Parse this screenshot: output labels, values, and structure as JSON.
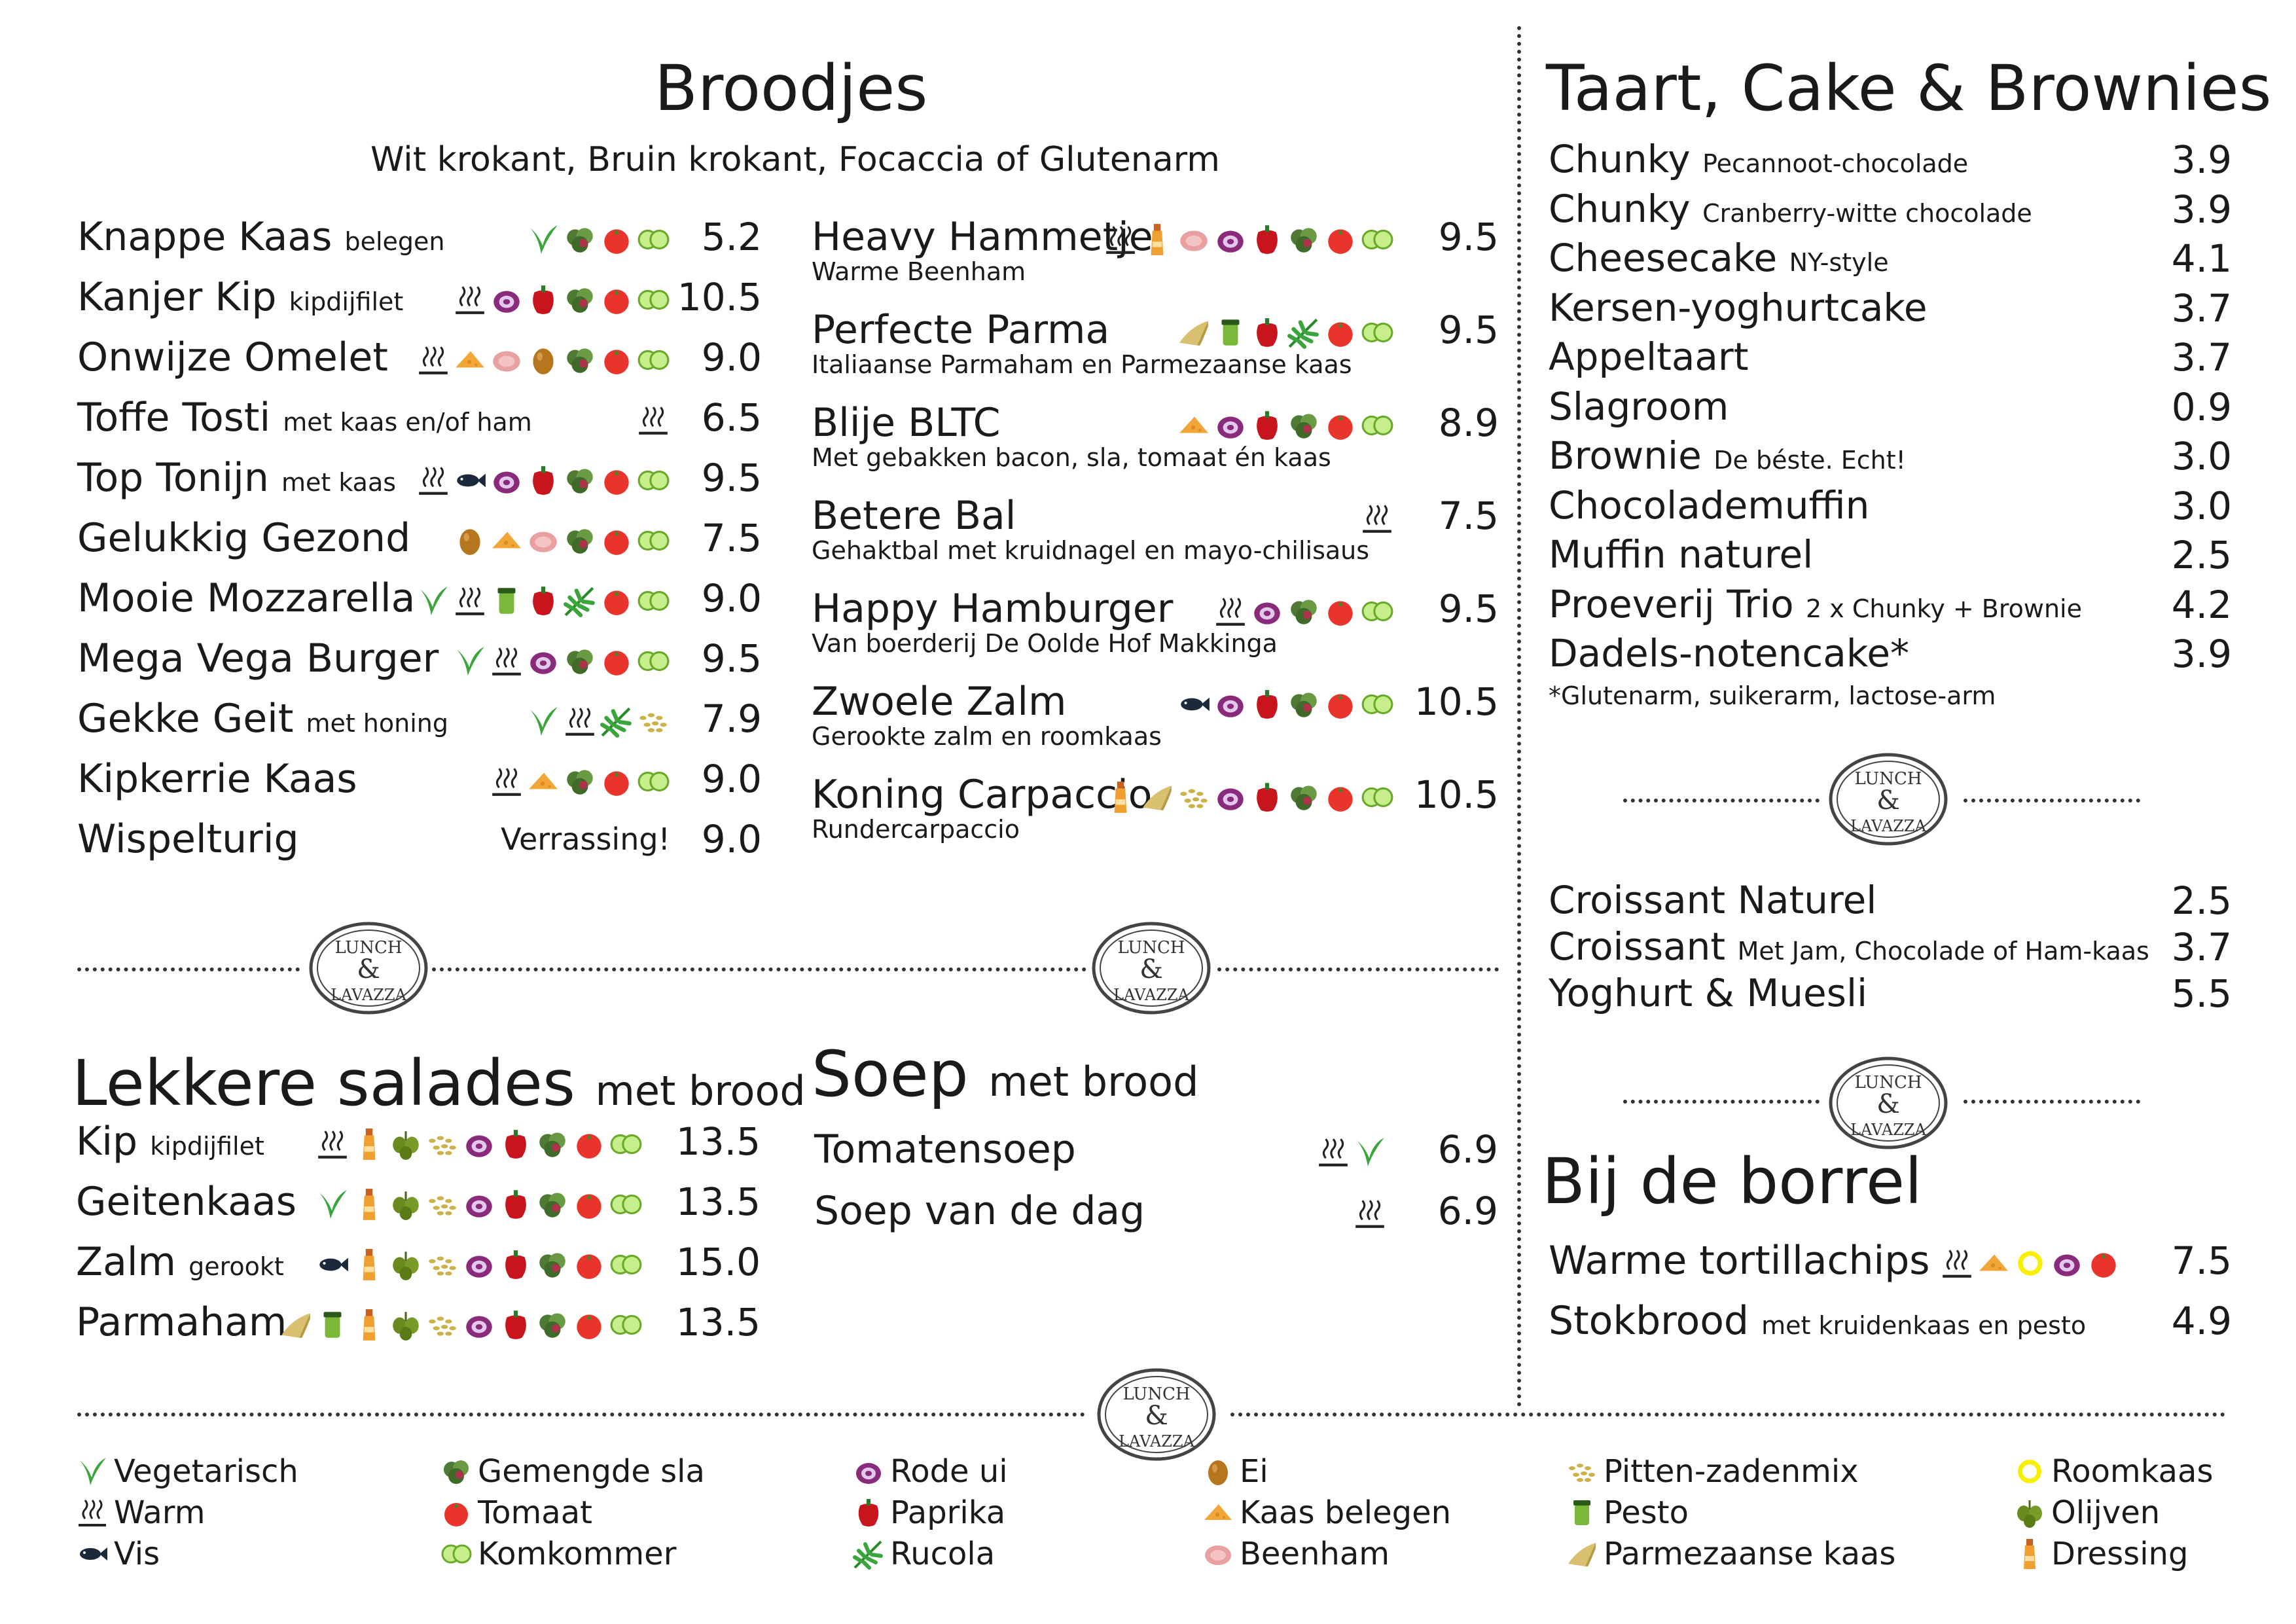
{
  "broodjes": {
    "title": "Broodjes",
    "subtitle": "Wit krokant, Bruin krokant, Focaccia of Glutenarm",
    "left": [
      {
        "name": "Knappe Kaas",
        "note": "belegen",
        "desc": "",
        "price": "5.2",
        "icons": [
          "vegetarian",
          "lettuce",
          "tomato",
          "cucumber"
        ]
      },
      {
        "name": "Kanjer Kip",
        "note": "kipdijfilet",
        "desc": "",
        "price": "10.5",
        "icons": [
          "warm",
          "onion",
          "pepper",
          "lettuce",
          "tomato",
          "cucumber"
        ]
      },
      {
        "name": "Onwijze Omelet",
        "note": "",
        "desc": "",
        "price": "9.0",
        "icons": [
          "warm",
          "cheese",
          "ham",
          "egg",
          "lettuce",
          "tomato",
          "cucumber"
        ]
      },
      {
        "name": "Toffe Tosti",
        "note": "met kaas en/of ham",
        "desc": "",
        "price": "6.5",
        "icons": [
          "warm"
        ]
      },
      {
        "name": "Top Tonijn",
        "note": "met kaas",
        "desc": "",
        "price": "9.5",
        "icons": [
          "warm",
          "fish",
          "onion",
          "pepper",
          "lettuce",
          "tomato",
          "cucumber"
        ]
      },
      {
        "name": "Gelukkig Gezond",
        "note": "",
        "desc": "",
        "price": "7.5",
        "icons": [
          "egg",
          "cheese",
          "ham",
          "lettuce",
          "tomato",
          "cucumber"
        ]
      },
      {
        "name": "Mooie Mozzarella",
        "note": "",
        "desc": "",
        "price": "9.0",
        "icons": [
          "vegetarian",
          "warm",
          "pesto",
          "pepper",
          "rucola",
          "tomato",
          "cucumber"
        ]
      },
      {
        "name": "Mega Vega Burger",
        "note": "",
        "desc": "",
        "price": "9.5",
        "icons": [
          "vegetarian",
          "warm",
          "onion",
          "lettuce",
          "tomato",
          "cucumber"
        ]
      },
      {
        "name": "Gekke Geit",
        "note": "met honing",
        "desc": "",
        "price": "7.9",
        "icons": [
          "vegetarian",
          "warm",
          "rucola",
          "seeds"
        ]
      },
      {
        "name": "Kipkerrie Kaas",
        "note": "",
        "desc": "",
        "price": "9.0",
        "icons": [
          "warm",
          "cheese",
          "lettuce",
          "tomato",
          "cucumber"
        ]
      },
      {
        "name": "Wispelturig",
        "note": "",
        "desc": "Verrassing!",
        "price": "9.0",
        "icons": []
      }
    ],
    "right": [
      {
        "name": "Heavy Hammetje",
        "note": "",
        "desc": "Warme Beenham",
        "price": "9.5",
        "icons": [
          "warm",
          "dressing",
          "ham",
          "onion",
          "pepper",
          "lettuce",
          "tomato",
          "cucumber"
        ]
      },
      {
        "name": "Perfecte Parma",
        "note": "",
        "desc": "Italiaanse Parmaham en Parmezaanse kaas",
        "price": "9.5",
        "icons": [
          "parmesan",
          "pesto",
          "pepper",
          "rucola",
          "tomato",
          "cucumber"
        ]
      },
      {
        "name": "Blije BLTC",
        "note": "",
        "desc": "Met gebakken bacon, sla, tomaat én kaas",
        "price": "8.9",
        "icons": [
          "cheese",
          "onion",
          "pepper",
          "lettuce",
          "tomato",
          "cucumber"
        ]
      },
      {
        "name": "Betere Bal",
        "note": "",
        "desc": "Gehaktbal met kruidnagel en mayo-chilisaus",
        "price": "7.5",
        "icons": [
          "warm"
        ]
      },
      {
        "name": "Happy Hamburger",
        "note": "",
        "desc": "Van boerderij De Oolde Hof Makkinga",
        "price": "9.5",
        "icons": [
          "warm",
          "onion",
          "lettuce",
          "tomato",
          "cucumber"
        ]
      },
      {
        "name": "Zwoele Zalm",
        "note": "",
        "desc": "Gerookte zalm en roomkaas",
        "price": "10.5",
        "icons": [
          "fish",
          "onion",
          "pepper",
          "lettuce",
          "tomato",
          "cucumber"
        ]
      },
      {
        "name": "Koning Carpaccio",
        "note": "",
        "desc": "Rundercarpaccio",
        "price": "10.5",
        "icons": [
          "dressing",
          "parmesan",
          "seeds",
          "onion",
          "pepper",
          "lettuce",
          "tomato",
          "cucumber"
        ]
      }
    ]
  },
  "salades": {
    "title": "Lekkere salades",
    "title_note": "met brood",
    "items": [
      {
        "name": "Kip",
        "note": "kipdijfilet",
        "price": "13.5",
        "icons": [
          "warm",
          "dressing",
          "olives",
          "seeds",
          "onion",
          "pepper",
          "lettuce",
          "tomato",
          "cucumber"
        ]
      },
      {
        "name": "Geitenkaas",
        "note": "",
        "price": "13.5",
        "icons": [
          "vegetarian",
          "dressing",
          "olives",
          "seeds",
          "onion",
          "pepper",
          "lettuce",
          "tomato",
          "cucumber"
        ]
      },
      {
        "name": "Zalm",
        "note": "gerookt",
        "price": "15.0",
        "icons": [
          "fish",
          "dressing",
          "olives",
          "seeds",
          "onion",
          "pepper",
          "lettuce",
          "tomato",
          "cucumber"
        ]
      },
      {
        "name": "Parmaham",
        "note": "",
        "price": "13.5",
        "icons": [
          "parmesan",
          "pesto",
          "dressing",
          "olives",
          "seeds",
          "onion",
          "pepper",
          "lettuce",
          "tomato",
          "cucumber"
        ]
      }
    ]
  },
  "soep": {
    "title": "Soep",
    "title_note": "met brood",
    "items": [
      {
        "name": "Tomatensoep",
        "price": "6.9",
        "icons": [
          "warm",
          "vegetarian"
        ]
      },
      {
        "name": "Soep van de dag",
        "price": "6.9",
        "icons": [
          "warm"
        ]
      }
    ]
  },
  "taart": {
    "title": "Taart, Cake & Brownies",
    "items": [
      {
        "name": "Chunky",
        "note": "Pecannoot-chocolade",
        "price": "3.9"
      },
      {
        "name": "Chunky",
        "note": "Cranberry-witte chocolade",
        "price": "3.9"
      },
      {
        "name": "Cheesecake",
        "note": "NY-style",
        "price": "4.1"
      },
      {
        "name": "Kersen-yoghurtcake",
        "note": "",
        "price": "3.7"
      },
      {
        "name": "Appeltaart",
        "note": "",
        "price": "3.7"
      },
      {
        "name": "Slagroom",
        "note": "",
        "price": "0.9"
      },
      {
        "name": "Brownie",
        "note": "De béste. Echt!",
        "price": "3.0"
      },
      {
        "name": "Chocolademuffin",
        "note": "",
        "price": "3.0"
      },
      {
        "name": "Muffin naturel",
        "note": "",
        "price": "2.5"
      },
      {
        "name": "Proeverij Trio",
        "note": "2 x Chunky + Brownie",
        "price": "4.2"
      },
      {
        "name": "Dadels-notencake*",
        "note": "",
        "price": "3.9"
      }
    ],
    "footnote": "*Glutenarm, suikerarm, lactose-arm"
  },
  "ontbijt": {
    "items": [
      {
        "name": "Croissant Naturel",
        "note": "",
        "price": "2.5"
      },
      {
        "name": "Croissant",
        "note": "Met Jam, Chocolade of Ham-kaas",
        "price": "3.7"
      },
      {
        "name": "Yoghurt & Muesli",
        "note": "",
        "price": "5.5"
      }
    ]
  },
  "borrel": {
    "title": "Bij de borrel",
    "items": [
      {
        "name": "Warme tortillachips",
        "note": "",
        "price": "7.5",
        "icons": [
          "warm",
          "cheese",
          "creamcheese",
          "onion",
          "tomato"
        ]
      },
      {
        "name": "Stokbrood",
        "note": "met kruidenkaas en pesto",
        "price": "4.9",
        "icons": []
      }
    ]
  },
  "logo": {
    "line1": "LUNCH",
    "amp": "&",
    "line2": "LAVAZZA"
  },
  "legend": [
    {
      "icon": "vegetarian",
      "label": "Vegetarisch"
    },
    {
      "icon": "warm",
      "label": "Warm"
    },
    {
      "icon": "fish",
      "label": "Vis"
    },
    {
      "icon": "lettuce",
      "label": "Gemengde sla"
    },
    {
      "icon": "tomato",
      "label": "Tomaat"
    },
    {
      "icon": "cucumber",
      "label": "Komkommer"
    },
    {
      "icon": "onion",
      "label": "Rode ui"
    },
    {
      "icon": "pepper",
      "label": "Paprika"
    },
    {
      "icon": "rucola",
      "label": "Rucola"
    },
    {
      "icon": "egg",
      "label": "Ei"
    },
    {
      "icon": "cheese",
      "label": "Kaas belegen"
    },
    {
      "icon": "ham",
      "label": "Beenham"
    },
    {
      "icon": "seeds",
      "label": "Pitten-zadenmix"
    },
    {
      "icon": "pesto",
      "label": "Pesto"
    },
    {
      "icon": "parmesan",
      "label": "Parmezaanse kaas"
    },
    {
      "icon": "creamcheese",
      "label": "Roomkaas"
    },
    {
      "icon": "olives",
      "label": "Olijven"
    },
    {
      "icon": "dressing",
      "label": "Dressing"
    }
  ],
  "colors": {
    "text": "#1a1a1a",
    "vegetarian": "#3aa53a",
    "tomato": "#e8342a",
    "pepper": "#c8141c",
    "onion": "#8a2a7a",
    "cucumber": "#a6dc6a",
    "lettuce": "#5a8a3a",
    "egg": "#b5761e",
    "cheese": "#f2a63a"
  }
}
